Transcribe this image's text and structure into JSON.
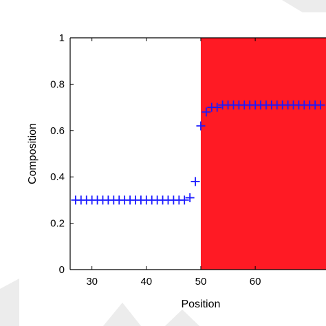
{
  "chart_data": {
    "type": "scatter",
    "title": "",
    "xlabel": "Position",
    "ylabel": "Composition",
    "xlim": [
      26,
      73
    ],
    "ylim": [
      0,
      1
    ],
    "x_ticks": [
      "30",
      "40",
      "50",
      "60"
    ],
    "y_ticks": [
      "0",
      "0.2",
      "0.4",
      "0.6",
      "0.8",
      "1"
    ],
    "grid": false,
    "marker": "+",
    "marker_color": "#1a1aff",
    "shaded_region": {
      "x_start": 50,
      "color": "#ff1a24"
    },
    "series": [
      {
        "x": [
          27,
          28,
          29,
          30,
          31,
          32,
          33,
          34,
          35,
          36,
          37,
          38,
          39,
          40,
          41,
          42,
          43,
          44,
          45,
          46,
          47,
          48,
          49,
          50,
          51,
          52,
          53,
          54,
          55,
          56,
          57,
          58,
          59,
          60,
          61,
          62,
          63,
          64,
          65,
          66,
          67,
          68,
          69,
          70,
          71,
          72
        ],
        "y": [
          0.3,
          0.3,
          0.3,
          0.3,
          0.3,
          0.3,
          0.3,
          0.3,
          0.3,
          0.3,
          0.3,
          0.3,
          0.3,
          0.3,
          0.3,
          0.3,
          0.3,
          0.3,
          0.3,
          0.3,
          0.3,
          0.31,
          0.38,
          0.62,
          0.68,
          0.7,
          0.7,
          0.71,
          0.71,
          0.71,
          0.71,
          0.71,
          0.71,
          0.71,
          0.71,
          0.71,
          0.71,
          0.71,
          0.71,
          0.71,
          0.71,
          0.71,
          0.71,
          0.71,
          0.71,
          0.71
        ]
      }
    ]
  }
}
